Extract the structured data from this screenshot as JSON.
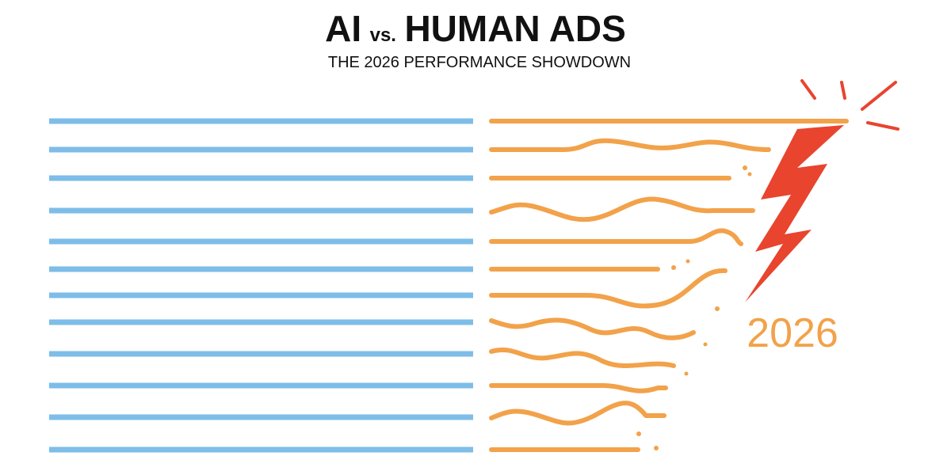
{
  "title": {
    "left": "AI",
    "middle": "vs.",
    "right": "HUMAN ADS"
  },
  "subtitle": "THE 2026 PERFORMANCE SHOWDOWN",
  "year_label": "2026"
}
